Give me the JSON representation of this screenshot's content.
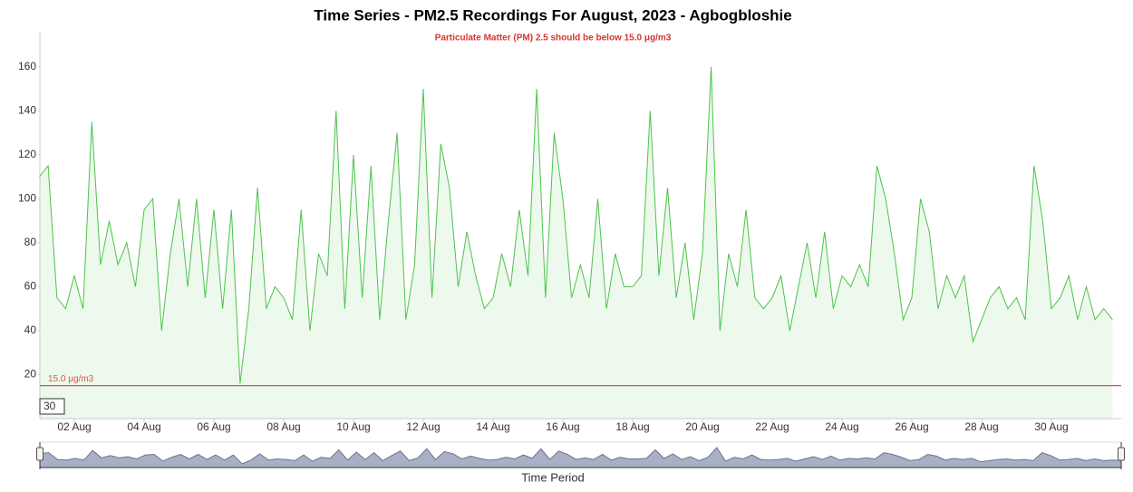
{
  "chart_data": {
    "type": "area",
    "title": "Time Series - PM2.5 Recordings For August, 2023 - Agbogbloshie",
    "subtitle": "Particulate Matter (PM) 2.5 should be below 15.0 μg/m3",
    "xlabel": "Time Period",
    "range_input": "30",
    "grid": false,
    "categories": [
      null,
      null,
      null,
      null,
      "02 Aug",
      null,
      null,
      null,
      null,
      null,
      null,
      null,
      "04 Aug",
      null,
      null,
      null,
      null,
      null,
      null,
      null,
      "06 Aug",
      null,
      null,
      null,
      null,
      null,
      null,
      null,
      "08 Aug",
      null,
      null,
      null,
      null,
      null,
      null,
      null,
      "10 Aug",
      null,
      null,
      null,
      null,
      null,
      null,
      null,
      "12 Aug",
      null,
      null,
      null,
      null,
      null,
      null,
      null,
      "14 Aug",
      null,
      null,
      null,
      null,
      null,
      null,
      null,
      "16 Aug",
      null,
      null,
      null,
      null,
      null,
      null,
      null,
      "18 Aug",
      null,
      null,
      null,
      null,
      null,
      null,
      null,
      "20 Aug",
      null,
      null,
      null,
      null,
      null,
      null,
      null,
      "22 Aug",
      null,
      null,
      null,
      null,
      null,
      null,
      null,
      "24 Aug",
      null,
      null,
      null,
      null,
      null,
      null,
      null,
      "26 Aug",
      null,
      null,
      null,
      null,
      null,
      null,
      null,
      "28 Aug",
      null,
      null,
      null,
      null,
      null,
      null,
      null,
      "30 Aug",
      null,
      null,
      null,
      null,
      null,
      null,
      null
    ],
    "series": [
      {
        "name": "PM2.5",
        "color": "#4cc34c",
        "values": [
          110,
          115,
          55,
          50,
          65,
          50,
          135,
          70,
          90,
          70,
          80,
          60,
          95,
          100,
          40,
          75,
          100,
          60,
          100,
          55,
          95,
          50,
          95,
          16,
          50,
          105,
          50,
          60,
          55,
          45,
          95,
          40,
          75,
          65,
          140,
          50,
          120,
          55,
          115,
          45,
          90,
          130,
          45,
          70,
          150,
          55,
          125,
          105,
          60,
          85,
          65,
          50,
          55,
          75,
          60,
          95,
          65,
          150,
          55,
          130,
          100,
          55,
          70,
          55,
          100,
          50,
          75,
          60,
          60,
          65,
          140,
          65,
          105,
          55,
          80,
          45,
          75,
          160,
          40,
          75,
          60,
          95,
          55,
          50,
          55,
          65,
          40,
          60,
          80,
          55,
          85,
          50,
          65,
          60,
          70,
          60,
          115,
          100,
          75,
          45,
          55,
          100,
          85,
          50,
          65,
          55,
          65,
          35,
          45,
          55,
          60,
          50,
          55,
          45,
          115,
          90,
          50,
          55,
          65,
          45,
          60,
          45,
          50,
          45
        ]
      }
    ],
    "ylim": [
      0,
      176
    ],
    "yticks": [
      20,
      40,
      60,
      80,
      100,
      120,
      140,
      160
    ],
    "threshold": {
      "value": 15,
      "label": "15.0 μg/m3",
      "color": "#d9534f"
    }
  }
}
